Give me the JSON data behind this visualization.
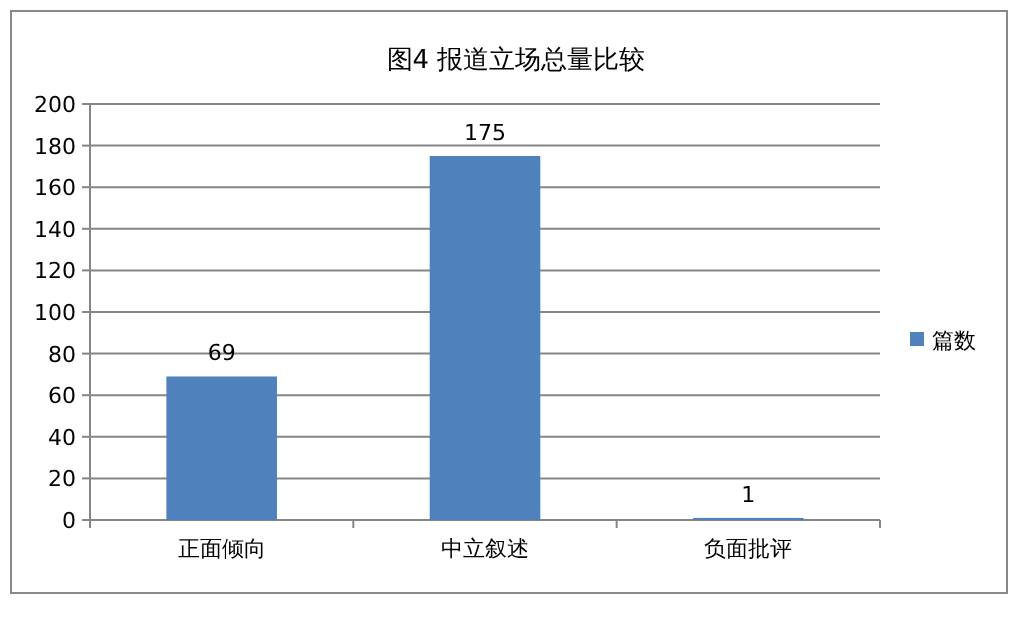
{
  "chart_data": {
    "type": "bar",
    "title": "图4 报道立场总量比较",
    "categories": [
      "正面倾向",
      "中立叙述",
      "负面批评"
    ],
    "series": [
      {
        "name": "篇数",
        "color": "#4f81bd",
        "values": [
          69,
          175,
          1
        ]
      }
    ],
    "ylim": [
      0,
      200
    ],
    "yticks": [
      0,
      20,
      40,
      60,
      80,
      100,
      120,
      140,
      160,
      180,
      200
    ],
    "grid": "y",
    "legend": "right",
    "data_labels": true
  }
}
